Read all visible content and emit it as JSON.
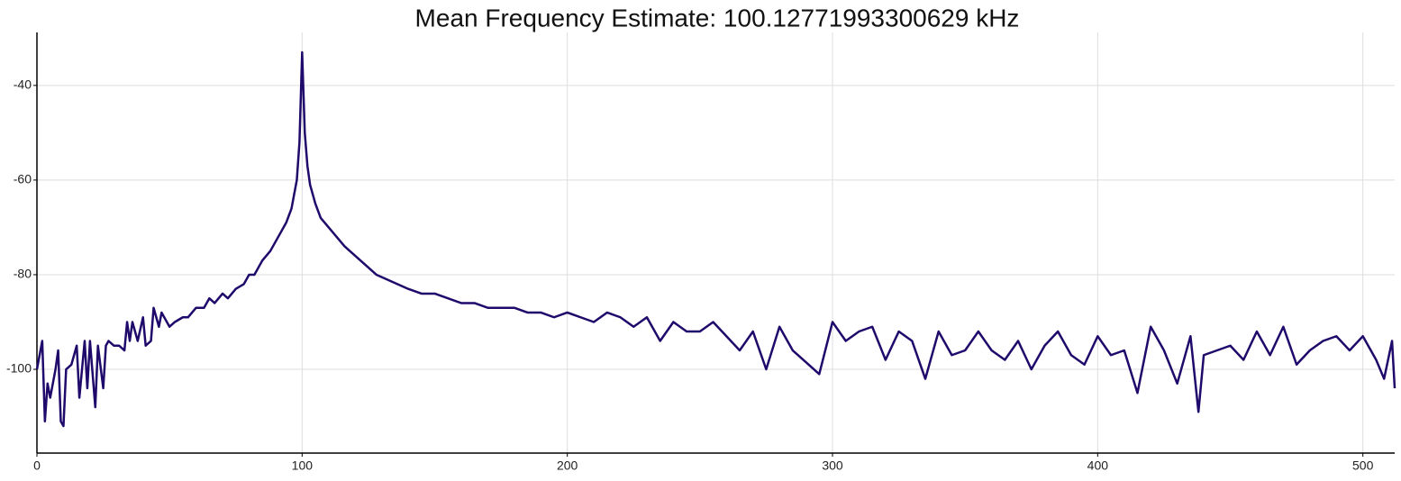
{
  "chart_data": {
    "type": "line",
    "title": "Mean Frequency Estimate: 100.12771993300629 kHz",
    "color": "#1f0a6b",
    "grid": true,
    "xlim": [
      0,
      512
    ],
    "ylim": [
      -117.7,
      -28.8
    ],
    "xticks": [
      0,
      100,
      200,
      300,
      400,
      500
    ],
    "yticks": [
      -100,
      -80,
      -60,
      -40
    ],
    "x": [
      0,
      2,
      3,
      4,
      5,
      7,
      8,
      9,
      10,
      11,
      13,
      15,
      16,
      18,
      19,
      20,
      22,
      23,
      25,
      26,
      27,
      29,
      31,
      33,
      34,
      35,
      36,
      38,
      40,
      41,
      43,
      44,
      46,
      47,
      50,
      52,
      55,
      57,
      60,
      63,
      65,
      67,
      70,
      72,
      75,
      78,
      80,
      82,
      85,
      88,
      90,
      92,
      94,
      96,
      98,
      99,
      100,
      101,
      102,
      103,
      105,
      107,
      110,
      113,
      116,
      120,
      124,
      128,
      132,
      136,
      140,
      145,
      150,
      155,
      160,
      165,
      170,
      175,
      180,
      185,
      190,
      195,
      200,
      205,
      210,
      215,
      220,
      225,
      230,
      235,
      240,
      245,
      250,
      255,
      260,
      265,
      270,
      275,
      280,
      285,
      295,
      300,
      305,
      310,
      315,
      320,
      325,
      330,
      335,
      340,
      345,
      350,
      355,
      360,
      365,
      370,
      375,
      380,
      385,
      390,
      395,
      400,
      405,
      410,
      415,
      420,
      425,
      430,
      435,
      438,
      440,
      445,
      450,
      455,
      460,
      465,
      470,
      475,
      480,
      485,
      490,
      495,
      500,
      505,
      508,
      511,
      512
    ],
    "values": [
      -100,
      -94,
      -111,
      -103,
      -106,
      -100,
      -96,
      -111,
      -112,
      -100,
      -99,
      -95,
      -106,
      -94,
      -104,
      -94,
      -108,
      -95,
      -104,
      -95,
      -94,
      -95,
      -95,
      -96,
      -90,
      -94,
      -90,
      -94,
      -89,
      -95,
      -94,
      -87,
      -91,
      -88,
      -91,
      -90,
      -89,
      -89,
      -87,
      -87,
      -85,
      -86,
      -84,
      -85,
      -83,
      -82,
      -80,
      -80,
      -77,
      -75,
      -73,
      -71,
      -69,
      -66,
      -60,
      -52,
      -33,
      -50,
      -57,
      -61,
      -65,
      -68,
      -70,
      -72,
      -74,
      -76,
      -78,
      -80,
      -81,
      -82,
      -83,
      -84,
      -84,
      -85,
      -86,
      -86,
      -87,
      -87,
      -87,
      -88,
      -88,
      -89,
      -88,
      -89,
      -90,
      -88,
      -89,
      -91,
      -89,
      -94,
      -90,
      -92,
      -92,
      -90,
      -93,
      -96,
      -92,
      -100,
      -91,
      -96,
      -101,
      -90,
      -94,
      -92,
      -91,
      -98,
      -92,
      -94,
      -102,
      -92,
      -97,
      -96,
      -92,
      -96,
      -98,
      -94,
      -100,
      -95,
      -92,
      -97,
      -99,
      -93,
      -97,
      -96,
      -105,
      -91,
      -96,
      -103,
      -93,
      -109,
      -97,
      -96,
      -95,
      -98,
      -92,
      -97,
      -91,
      -99,
      -96,
      -94,
      -93,
      -96,
      -93,
      -98,
      -102,
      -94,
      -104
    ]
  }
}
